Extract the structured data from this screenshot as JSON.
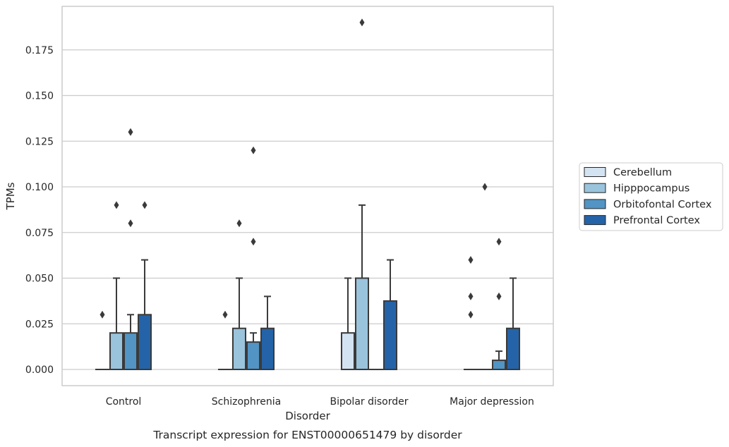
{
  "caption": "Transcript expression for ENST00000651479 by disorder",
  "chart_data": {
    "type": "box",
    "title": "",
    "xlabel": "Disorder",
    "ylabel": "TPMs",
    "categories": [
      "Control",
      "Schizophrenia",
      "Bipolar disorder",
      "Major depression"
    ],
    "ylim": [
      -0.0095,
      0.1975
    ],
    "yticks": [
      0.0,
      0.025,
      0.05,
      0.075,
      0.1,
      0.125,
      0.15,
      0.175
    ],
    "ytick_labels": [
      "0.000",
      "0.025",
      "0.050",
      "0.075",
      "0.100",
      "0.125",
      "0.150",
      "0.175"
    ],
    "grid": "horizontal",
    "legend_position": "right",
    "series": [
      {
        "name": "Cerebellum",
        "color": "#d4e3f2",
        "boxes": [
          {
            "q1": 0.0,
            "median": 0.0,
            "q3": 0.0,
            "whisker_low": 0.0,
            "whisker_high": 0.0,
            "outliers": [
              0.03
            ]
          },
          {
            "q1": 0.0,
            "median": 0.0,
            "q3": 0.0,
            "whisker_low": 0.0,
            "whisker_high": 0.0,
            "outliers": [
              0.03
            ]
          },
          {
            "q1": 0.0,
            "median": 0.0,
            "q3": 0.02,
            "whisker_low": 0.0,
            "whisker_high": 0.05,
            "outliers": []
          },
          {
            "q1": 0.0,
            "median": 0.0,
            "q3": 0.0,
            "whisker_low": 0.0,
            "whisker_high": 0.0,
            "outliers": [
              0.03,
              0.04,
              0.06
            ]
          }
        ]
      },
      {
        "name": "Hipppocampus",
        "color": "#9ac3dc",
        "boxes": [
          {
            "q1": 0.0,
            "median": 0.0,
            "q3": 0.02,
            "whisker_low": 0.0,
            "whisker_high": 0.05,
            "outliers": [
              0.09
            ]
          },
          {
            "q1": 0.0,
            "median": 0.0,
            "q3": 0.0225,
            "whisker_low": 0.0,
            "whisker_high": 0.05,
            "outliers": [
              0.08
            ]
          },
          {
            "q1": 0.0,
            "median": 0.0,
            "q3": 0.05,
            "whisker_low": 0.0,
            "whisker_high": 0.09,
            "outliers": [
              0.19
            ]
          },
          {
            "q1": 0.0,
            "median": 0.0,
            "q3": 0.0,
            "whisker_low": 0.0,
            "whisker_high": 0.0,
            "outliers": [
              0.1
            ]
          }
        ]
      },
      {
        "name": "Orbitofontal Cortex",
        "color": "#5294c4",
        "boxes": [
          {
            "q1": 0.0,
            "median": 0.0,
            "q3": 0.02,
            "whisker_low": 0.0,
            "whisker_high": 0.03,
            "outliers": [
              0.08,
              0.13
            ]
          },
          {
            "q1": 0.0,
            "median": 0.0,
            "q3": 0.015,
            "whisker_low": 0.0,
            "whisker_high": 0.02,
            "outliers": [
              0.07,
              0.12
            ]
          },
          {
            "q1": 0.0,
            "median": 0.0,
            "q3": 0.0,
            "whisker_low": 0.0,
            "whisker_high": 0.0,
            "outliers": []
          },
          {
            "q1": 0.0,
            "median": 0.0,
            "q3": 0.005,
            "whisker_low": 0.0,
            "whisker_high": 0.01,
            "outliers": [
              0.04,
              0.07
            ]
          }
        ]
      },
      {
        "name": "Prefrontal Cortex",
        "color": "#2563a8",
        "boxes": [
          {
            "q1": 0.0,
            "median": 0.0,
            "q3": 0.03,
            "whisker_low": 0.0,
            "whisker_high": 0.06,
            "outliers": [
              0.09
            ]
          },
          {
            "q1": 0.0,
            "median": 0.0,
            "q3": 0.0225,
            "whisker_low": 0.0,
            "whisker_high": 0.04,
            "outliers": []
          },
          {
            "q1": 0.0,
            "median": 0.0,
            "q3": 0.0375,
            "whisker_low": 0.0,
            "whisker_high": 0.06,
            "outliers": []
          },
          {
            "q1": 0.0,
            "median": 0.0,
            "q3": 0.0225,
            "whisker_low": 0.0,
            "whisker_high": 0.05,
            "outliers": []
          }
        ]
      }
    ]
  }
}
